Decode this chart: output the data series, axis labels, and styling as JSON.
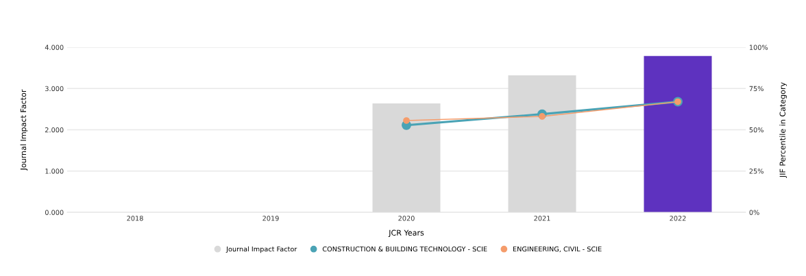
{
  "chart_data": {
    "type": "bar",
    "xlabel": "JCR Years",
    "ylabel": "Journal Impact Factor",
    "y2label": "JIF Percentile in Category",
    "categories": [
      "2018",
      "2019",
      "2020",
      "2021",
      "2022"
    ],
    "series": [
      {
        "name": "Journal Impact Factor",
        "color": "#d9d9d9",
        "colors": [
          "#d9d9d9",
          "#d9d9d9",
          "#d9d9d9",
          "#d9d9d9",
          "#5e32bf"
        ],
        "values": [
          null,
          null,
          2.64,
          3.32,
          3.79
        ]
      },
      {
        "name": "CONSTRUCTION & BUILDING TECHNOLOGY - SCIE",
        "type": "line",
        "axis": "y2",
        "color": "#4aa3b5",
        "values": [
          null,
          null,
          52.8,
          59.5,
          67.0
        ]
      },
      {
        "name": "ENGINEERING, CIVIL - SCIE",
        "type": "line",
        "axis": "y2",
        "color": "#f59c6b",
        "values": [
          null,
          null,
          55.6,
          58.1,
          67.0
        ]
      }
    ],
    "ylim": [
      0,
      4
    ],
    "yticks": [
      {
        "value": 0,
        "label": "0.000"
      },
      {
        "value": 1,
        "label": "1.000"
      },
      {
        "value": 2,
        "label": "2.000"
      },
      {
        "value": 3,
        "label": "3.000"
      },
      {
        "value": 4,
        "label": "4.000"
      }
    ],
    "y2lim": [
      0,
      100
    ],
    "y2ticks": [
      {
        "value": 0,
        "label": "0%"
      },
      {
        "value": 25,
        "label": "25%"
      },
      {
        "value": 50,
        "label": "50%"
      },
      {
        "value": 75,
        "label": "75%"
      },
      {
        "value": 100,
        "label": "100%"
      }
    ],
    "grid": "y",
    "legend": "bottom",
    "marker": "circle",
    "line_style": "solid"
  }
}
